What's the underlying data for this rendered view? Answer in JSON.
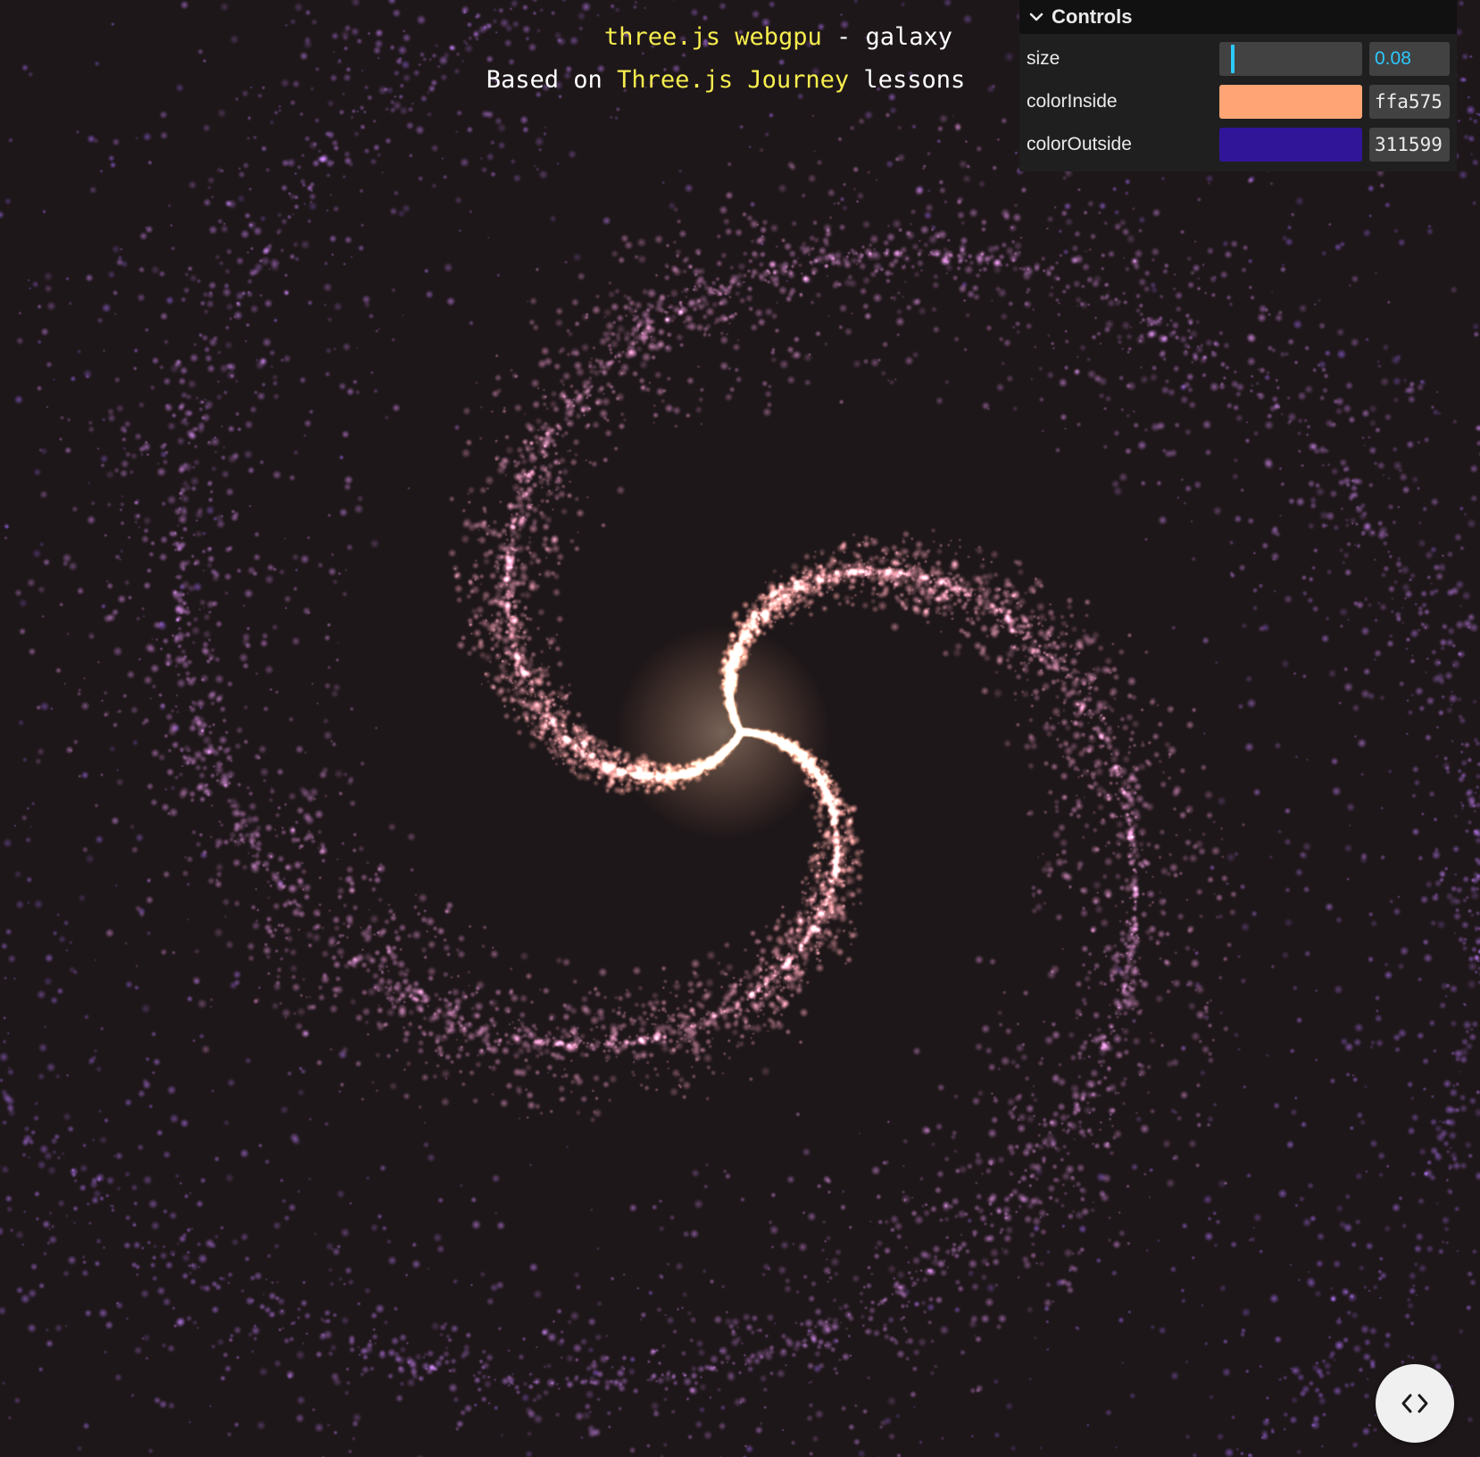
{
  "info": {
    "title_link": "three.js webgpu",
    "title_rest": " - galaxy",
    "credit_prefix": "Based on ",
    "credit_link": "Three.js Journey",
    "credit_suffix": " lessons"
  },
  "gui": {
    "title": "Controls",
    "controls": {
      "size": {
        "label": "size",
        "value": "0.08",
        "fraction": 0.08
      },
      "color_inside": {
        "label": "colorInside",
        "hex": "ffa575",
        "color": "#ffa575"
      },
      "color_outside": {
        "label": "colorOutside",
        "hex": "311599",
        "color": "#311599"
      }
    }
  },
  "code_button": {
    "icon": "code-brackets-icon"
  },
  "colors": {
    "background": "#1e1719",
    "link": "#f7ee4e",
    "accent": "#2cc9ff"
  }
}
